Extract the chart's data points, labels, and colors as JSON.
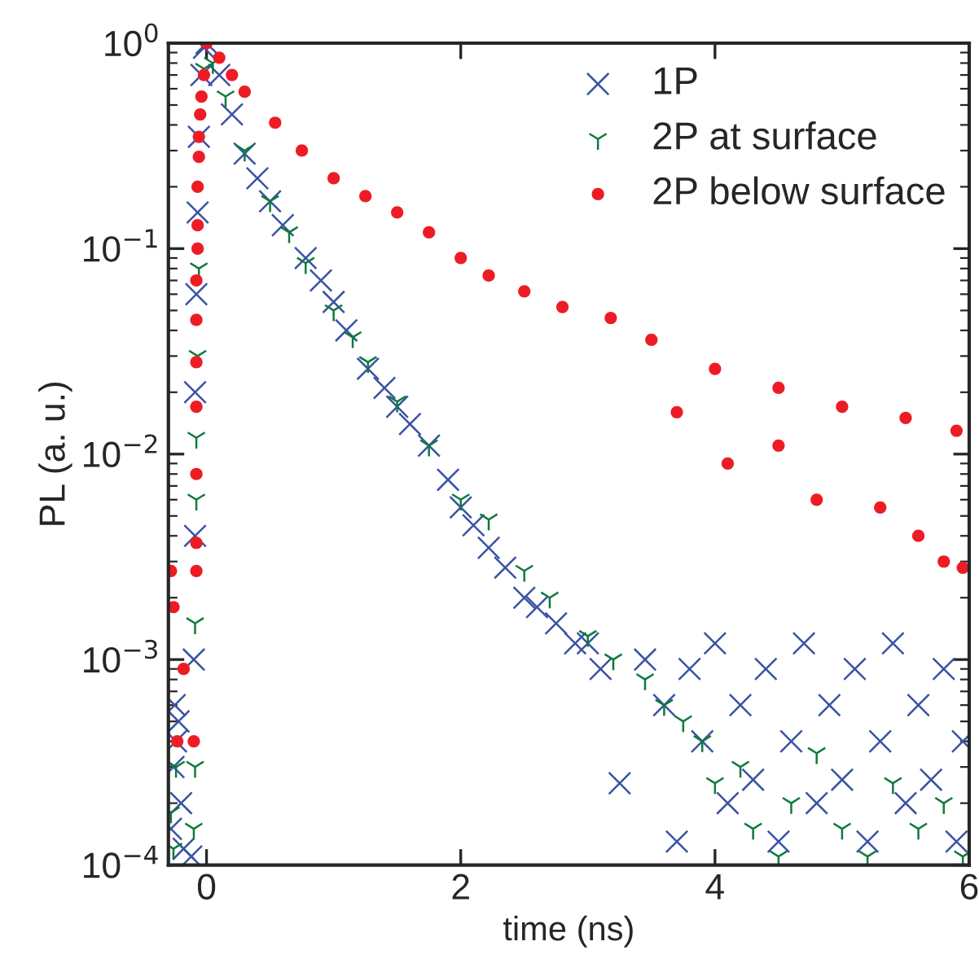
{
  "chart_data": {
    "type": "scatter",
    "xlabel": "time (ns)",
    "ylabel": "PL (a. u.)",
    "log": "y",
    "xlim": [
      -0.3,
      6
    ],
    "xticks": [
      0,
      2,
      4,
      6
    ],
    "ylim": [
      0.0001,
      1
    ],
    "yticks": [
      {
        "value": 1,
        "label": "10$^{0}$"
      },
      {
        "value": 0.1,
        "label": "10$^{−1}$"
      },
      {
        "value": 0.01,
        "label": "10$^{−2}$"
      },
      {
        "value": 0.001,
        "label": "10$^{−3}$"
      },
      {
        "value": 0.0001,
        "label": "10$^{−4}$"
      }
    ],
    "legend": "top right",
    "grid": false,
    "series": [
      {
        "name": "1P",
        "color": "#3953a4",
        "marker": "cross",
        "x": [
          -0.28,
          -0.26,
          -0.25,
          -0.24,
          -0.22,
          -0.2,
          -0.18,
          -0.12,
          -0.1,
          -0.09,
          -0.09,
          -0.08,
          -0.07,
          -0.06,
          -0.04,
          -0.02,
          0.0,
          0.1,
          0.2,
          0.3,
          0.4,
          0.5,
          0.6,
          0.78,
          0.9,
          1.0,
          1.1,
          1.27,
          1.4,
          1.5,
          1.6,
          1.75,
          1.9,
          2.0,
          2.1,
          2.22,
          2.35,
          2.5,
          2.6,
          2.75,
          2.9,
          3.0,
          3.1,
          3.25,
          3.45,
          3.6,
          3.7,
          3.8,
          3.9,
          4.0,
          4.1,
          4.2,
          4.3,
          4.4,
          4.5,
          4.6,
          4.7,
          4.8,
          4.9,
          5.0,
          5.1,
          5.2,
          5.3,
          5.4,
          5.5,
          5.6,
          5.7,
          5.8,
          5.9,
          5.95
        ],
        "values": [
          0.00015,
          0.0003,
          0.0006,
          0.0004,
          0.0005,
          0.0002,
          0.00012,
          0.00011,
          0.001,
          0.004,
          0.02,
          0.06,
          0.15,
          0.35,
          0.7,
          0.95,
          1.0,
          0.7,
          0.45,
          0.29,
          0.22,
          0.17,
          0.13,
          0.09,
          0.07,
          0.055,
          0.04,
          0.026,
          0.021,
          0.017,
          0.014,
          0.011,
          0.0075,
          0.0055,
          0.0045,
          0.0035,
          0.0028,
          0.002,
          0.0018,
          0.0015,
          0.0012,
          0.0012,
          0.0009,
          0.00025,
          0.001,
          0.0006,
          0.00013,
          0.0009,
          0.0004,
          0.0012,
          0.0002,
          0.0006,
          0.00026,
          0.0009,
          0.00013,
          0.0004,
          0.0012,
          0.0002,
          0.0006,
          0.00026,
          0.0009,
          0.00013,
          0.0004,
          0.0012,
          0.0002,
          0.0006,
          0.00026,
          0.0009,
          0.00013,
          0.0004
        ]
      },
      {
        "name": "2P at surface",
        "color": "#0f7a3b",
        "marker": "cross",
        "x": [
          -0.28,
          -0.26,
          -0.24,
          -0.1,
          -0.09,
          -0.09,
          -0.08,
          -0.08,
          -0.07,
          -0.06,
          -0.02,
          0.05,
          0.15,
          0.3,
          0.5,
          0.65,
          0.78,
          1.0,
          1.15,
          1.27,
          1.5,
          1.75,
          2.0,
          2.22,
          2.5,
          2.7,
          3.0,
          3.2,
          3.45,
          3.6,
          3.75,
          3.9,
          4.0,
          4.2,
          4.3,
          4.5,
          4.6,
          4.8,
          5.0,
          5.2,
          5.4,
          5.6,
          5.8,
          5.95
        ],
        "values": [
          0.00018,
          0.00012,
          0.0003,
          0.00015,
          0.0003,
          0.0015,
          0.006,
          0.012,
          0.03,
          0.08,
          0.75,
          0.8,
          0.55,
          0.3,
          0.17,
          0.12,
          0.085,
          0.05,
          0.037,
          0.028,
          0.018,
          0.011,
          0.006,
          0.0048,
          0.0027,
          0.002,
          0.0013,
          0.001,
          0.0008,
          0.0006,
          0.0005,
          0.0004,
          0.00025,
          0.0003,
          0.00015,
          0.00011,
          0.0002,
          0.00035,
          0.00015,
          0.00011,
          0.00025,
          0.00015,
          0.0002,
          0.00011
        ]
      },
      {
        "name": "2P below surface",
        "color": "#ed1c24",
        "marker": "circle",
        "x": [
          -0.28,
          -0.26,
          -0.23,
          -0.18,
          -0.1,
          -0.08,
          -0.08,
          -0.08,
          -0.08,
          -0.08,
          -0.08,
          -0.08,
          -0.07,
          -0.07,
          -0.07,
          -0.06,
          -0.06,
          -0.05,
          -0.04,
          -0.02,
          0.0,
          0.1,
          0.2,
          0.3,
          0.54,
          0.75,
          1.0,
          1.25,
          1.5,
          1.75,
          2.0,
          2.22,
          2.5,
          2.8,
          3.18,
          3.5,
          3.7,
          4.0,
          4.1,
          4.5,
          4.5,
          4.8,
          5.0,
          5.3,
          5.5,
          5.6,
          5.8,
          5.9,
          5.95
        ],
        "values": [
          0.0027,
          0.0018,
          0.0004,
          0.0009,
          0.0004,
          0.0027,
          0.0037,
          0.008,
          0.017,
          0.028,
          0.045,
          0.07,
          0.1,
          0.13,
          0.2,
          0.28,
          0.35,
          0.45,
          0.55,
          0.7,
          1.0,
          0.85,
          0.7,
          0.58,
          0.41,
          0.3,
          0.22,
          0.18,
          0.15,
          0.12,
          0.09,
          0.074,
          0.062,
          0.052,
          0.046,
          0.036,
          0.016,
          0.026,
          0.009,
          0.021,
          0.011,
          0.006,
          0.017,
          0.0055,
          0.015,
          0.004,
          0.003,
          0.013,
          0.0028
        ]
      }
    ]
  }
}
